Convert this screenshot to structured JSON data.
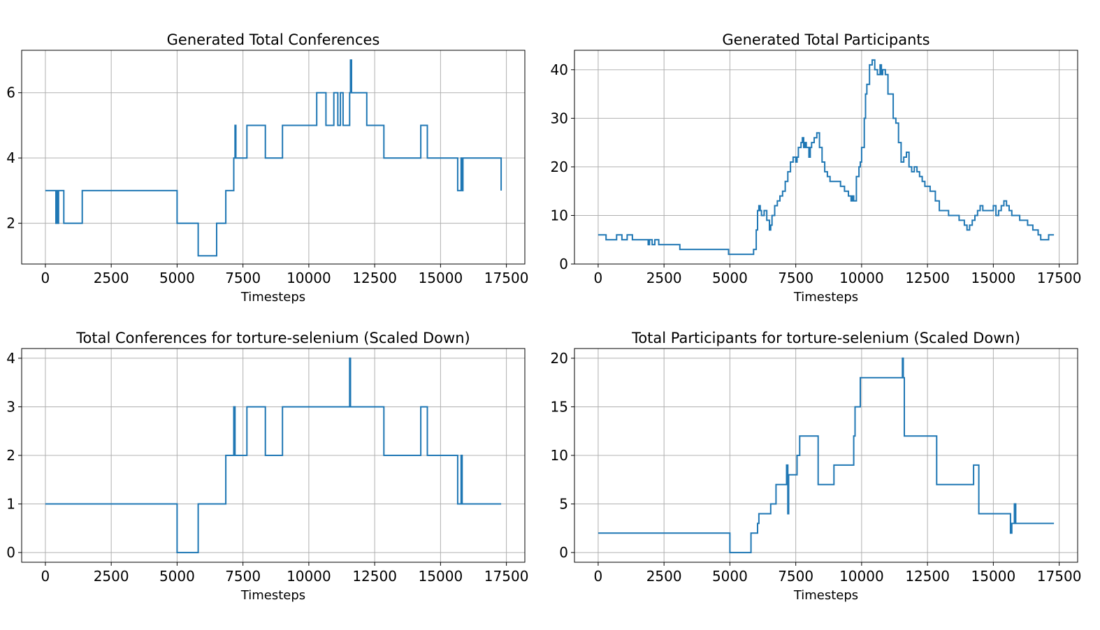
{
  "chart_data": [
    {
      "type": "line",
      "title": "Generated Total Conferences",
      "xlabel": "Timesteps",
      "ylabel": "",
      "xlim": [
        -900,
        18200
      ],
      "ylim": [
        0.75,
        7.3
      ],
      "xticks": [
        0,
        2500,
        5000,
        7500,
        10000,
        12500,
        15000,
        17500
      ],
      "yticks": [
        2,
        4,
        6
      ],
      "grid": true,
      "color": "#1f77b4",
      "step": true,
      "series": [
        {
          "x": [
            0,
            400,
            430,
            480,
            500,
            700,
            1400,
            5000,
            5800,
            6500,
            6850,
            7150,
            7200,
            7230,
            7650,
            8350,
            9000,
            10300,
            10650,
            10950,
            11100,
            11200,
            11300,
            11550,
            11580,
            11620,
            11650,
            12200,
            12850,
            14250,
            14500,
            15650,
            15780,
            15820,
            15850,
            17300
          ],
          "y": [
            3,
            2,
            3,
            2,
            3,
            2,
            3,
            2,
            1,
            2,
            3,
            4,
            5,
            4,
            5,
            4,
            5,
            6,
            5,
            6,
            5,
            6,
            5,
            6,
            7,
            6,
            6,
            5,
            4,
            5,
            4,
            3,
            4,
            3,
            4,
            3
          ]
        }
      ]
    },
    {
      "type": "line",
      "title": "Generated Total Participants",
      "xlabel": "Timesteps",
      "ylabel": "",
      "xlim": [
        -900,
        18200
      ],
      "ylim": [
        0,
        44
      ],
      "xticks": [
        0,
        2500,
        5000,
        7500,
        10000,
        12500,
        15000,
        17500
      ],
      "yticks": [
        0,
        10,
        20,
        30,
        40
      ],
      "grid": true,
      "color": "#1f77b4",
      "step": true,
      "series": [
        {
          "x": [
            0,
            300,
            700,
            900,
            1100,
            1300,
            1900,
            1950,
            2050,
            2150,
            2300,
            2400,
            3100,
            4950,
            5050,
            5900,
            6000,
            6050,
            6100,
            6150,
            6200,
            6300,
            6400,
            6500,
            6550,
            6600,
            6700,
            6800,
            6900,
            7000,
            7100,
            7200,
            7300,
            7400,
            7500,
            7550,
            7600,
            7700,
            7750,
            7800,
            7850,
            7900,
            8000,
            8050,
            8100,
            8200,
            8300,
            8400,
            8500,
            8600,
            8700,
            8800,
            9200,
            9350,
            9500,
            9600,
            9650,
            9700,
            9800,
            9900,
            9950,
            10000,
            10100,
            10150,
            10200,
            10300,
            10400,
            10500,
            10600,
            10700,
            10750,
            10800,
            10900,
            11000,
            11200,
            11300,
            11400,
            11500,
            11600,
            11700,
            11800,
            11900,
            12000,
            12100,
            12200,
            12300,
            12400,
            12600,
            12800,
            12950,
            13300,
            13700,
            13900,
            14000,
            14100,
            14200,
            14300,
            14400,
            14500,
            14600,
            15000,
            15100,
            15200,
            15300,
            15400,
            15500,
            15600,
            15700,
            16000,
            16300,
            16500,
            16700,
            16800,
            17100,
            17300
          ],
          "y": [
            6,
            5,
            6,
            5,
            6,
            5,
            4,
            5,
            4,
            5,
            4,
            4,
            3,
            2,
            2,
            3,
            7,
            11,
            12,
            11,
            10,
            11,
            9,
            7,
            8,
            10,
            12,
            13,
            14,
            15,
            17,
            19,
            21,
            22,
            21,
            22,
            24,
            25,
            26,
            24,
            25,
            24,
            22,
            24,
            25,
            26,
            27,
            24,
            21,
            19,
            18,
            17,
            16,
            15,
            14,
            13,
            14,
            13,
            18,
            20,
            21,
            24,
            30,
            35,
            37,
            41,
            42,
            40,
            39,
            41,
            39,
            40,
            39,
            35,
            30,
            29,
            25,
            21,
            22,
            23,
            20,
            19,
            20,
            19,
            18,
            17,
            16,
            15,
            13,
            11,
            10,
            9,
            8,
            7,
            8,
            9,
            10,
            11,
            12,
            11,
            12,
            10,
            11,
            12,
            13,
            12,
            11,
            10,
            9,
            8,
            7,
            6,
            5,
            6,
            6
          ]
        }
      ]
    },
    {
      "type": "line",
      "title": "Total Conferences for torture-selenium (Scaled Down)",
      "xlabel": "Timesteps",
      "ylabel": "",
      "xlim": [
        -900,
        18200
      ],
      "ylim": [
        -0.2,
        4.2
      ],
      "xticks": [
        0,
        2500,
        5000,
        7500,
        10000,
        12500,
        15000,
        17500
      ],
      "yticks": [
        0,
        1,
        2,
        3,
        4
      ],
      "grid": true,
      "color": "#1f77b4",
      "step": true,
      "series": [
        {
          "x": [
            0,
            5000,
            5800,
            6850,
            7150,
            7200,
            7230,
            7650,
            8350,
            9000,
            11550,
            11580,
            11620,
            12850,
            14250,
            14500,
            15650,
            15780,
            15820,
            15850,
            17300
          ],
          "y": [
            1,
            0,
            1,
            2,
            3,
            2,
            2,
            3,
            2,
            3,
            4,
            3,
            3,
            2,
            3,
            2,
            1,
            2,
            1,
            1,
            1
          ]
        }
      ]
    },
    {
      "type": "line",
      "title": "Total Participants for torture-selenium (Scaled Down)",
      "xlabel": "Timesteps",
      "ylabel": "",
      "xlim": [
        -900,
        18200
      ],
      "ylim": [
        -1,
        21
      ],
      "xticks": [
        0,
        2500,
        5000,
        7500,
        10000,
        12500,
        15000,
        17500
      ],
      "yticks": [
        0,
        5,
        10,
        15,
        20
      ],
      "grid": true,
      "color": "#1f77b4",
      "step": true,
      "series": [
        {
          "x": [
            0,
            5000,
            5800,
            6050,
            6100,
            6550,
            6750,
            6900,
            7150,
            7200,
            7230,
            7300,
            7550,
            7650,
            8350,
            8950,
            9700,
            9750,
            9950,
            11550,
            11580,
            11620,
            12850,
            14250,
            14450,
            15650,
            15700,
            15800,
            15850,
            17300
          ],
          "y": [
            2,
            0,
            2,
            3,
            4,
            5,
            7,
            7,
            9,
            4,
            8,
            8,
            10,
            12,
            7,
            9,
            12,
            15,
            18,
            20,
            18,
            12,
            7,
            9,
            4,
            2,
            3,
            5,
            3,
            3
          ]
        }
      ]
    }
  ]
}
